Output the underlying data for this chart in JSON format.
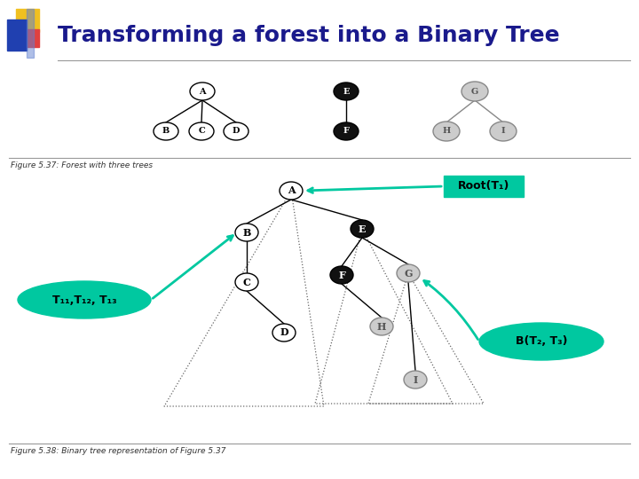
{
  "title": "Transforming a forest into a Binary Tree",
  "title_fontsize": 18,
  "title_color": "#1a1a8c",
  "bg_color": "#ffffff",
  "header_line_color": "#999999",
  "figure_caption_1": "Figure 5.37: Forest with three trees",
  "figure_caption_2": "Figure 5.38: Binary tree representation of Figure 5.37",
  "label_root": "Root(T₁)",
  "label_subtrees": "T₁₁,T₁₂, T₁₃",
  "label_siblings": "B(T₂, T₃)",
  "callout_color": "#00c8a0",
  "logo_yellow": "#f0c020",
  "logo_red": "#e04040",
  "logo_blue": "#2040b0",
  "logo_lightblue": "#6080d0"
}
